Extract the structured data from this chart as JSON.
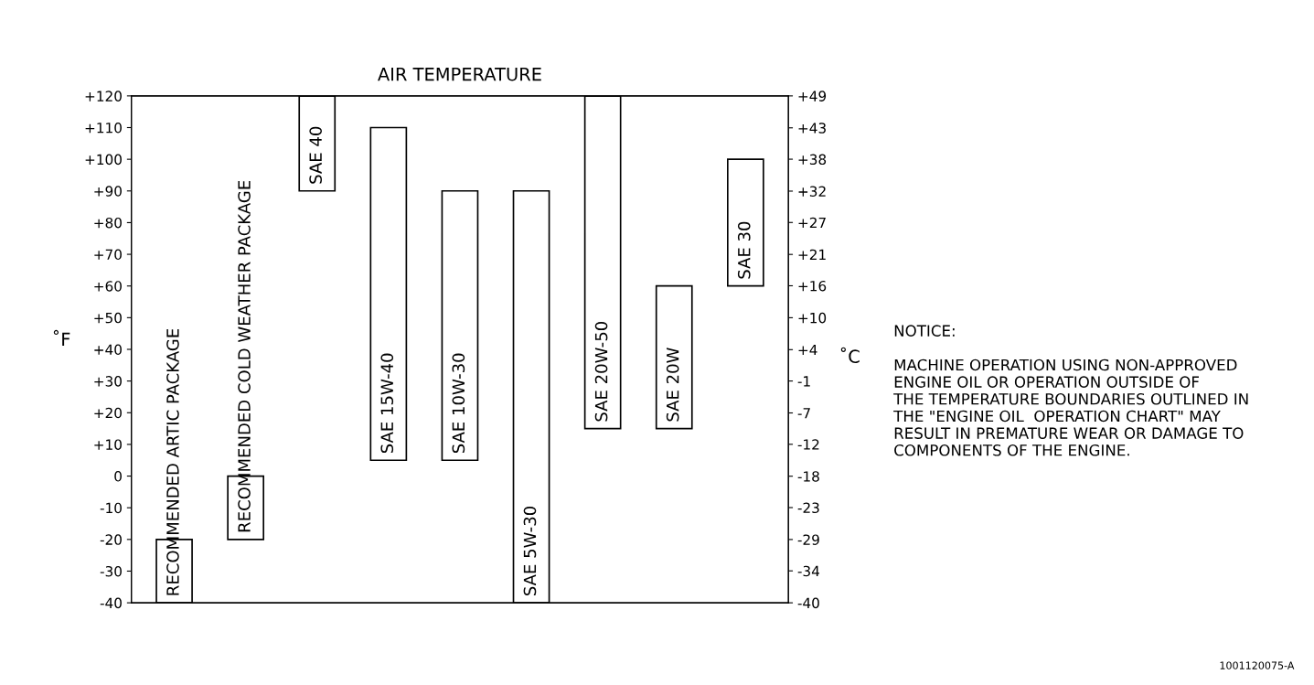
{
  "chart_data": {
    "type": "bar",
    "title": "AIR TEMPERATURE",
    "ylabel": "˚F",
    "y2label": "˚C",
    "categories": [
      "RECOMMENDED ARTIC PACKAGE",
      "RECOMMENDED COLD WEATHER PACKAGE",
      "SAE 40",
      "SAE 15W-40",
      "SAE 10W-30",
      "SAE 5W-30",
      "SAE 20W-50",
      "SAE 20W",
      "SAE 30"
    ],
    "base": [
      -40,
      -20,
      90,
      5,
      5,
      -40,
      15,
      15,
      60
    ],
    "values": [
      20,
      20,
      30,
      105,
      85,
      130,
      105,
      45,
      40
    ],
    "color": "#ffffff",
    "ylim": [
      -40,
      120
    ],
    "yticks": [
      {
        "value": 120,
        "label": "+120"
      },
      {
        "value": 110,
        "label": "+110"
      },
      {
        "value": 100,
        "label": "+100"
      },
      {
        "value": 90,
        "label": "+90"
      },
      {
        "value": 80,
        "label": "+80"
      },
      {
        "value": 70,
        "label": "+70"
      },
      {
        "value": 60,
        "label": "+60"
      },
      {
        "value": 50,
        "label": "+50"
      },
      {
        "value": 40,
        "label": "+40"
      },
      {
        "value": 30,
        "label": "+30"
      },
      {
        "value": 20,
        "label": "+20"
      },
      {
        "value": 10,
        "label": "+10"
      },
      0,
      -10,
      -20,
      -30,
      -40
    ],
    "y2lim": [
      -40,
      48.9
    ],
    "y2ticks": [
      {
        "value": 48.9,
        "label": "+49"
      },
      {
        "value": 43.3,
        "label": "+43"
      },
      {
        "value": 37.8,
        "label": "+38"
      },
      {
        "value": 32.2,
        "label": "+32"
      },
      {
        "value": 26.7,
        "label": "+27"
      },
      {
        "value": 21.1,
        "label": "+21"
      },
      {
        "value": 15.6,
        "label": "+16"
      },
      {
        "value": 10,
        "label": "+10"
      },
      {
        "value": 4.4,
        "label": "+4"
      },
      {
        "value": -1.1,
        "label": "-1"
      },
      {
        "value": -6.7,
        "label": "-7"
      },
      {
        "value": -12.2,
        "label": "-12"
      },
      {
        "value": -17.8,
        "label": "-18"
      },
      {
        "value": -23.3,
        "label": "-23"
      },
      {
        "value": -28.9,
        "label": "-29"
      },
      {
        "value": -34.4,
        "label": "-34"
      },
      {
        "value": -40,
        "label": "-40"
      }
    ],
    "grid": false,
    "annotations": [
      "NOTICE:\n\nMACHINE OPERATION USING NON-APPROVED\nENGINE OIL OR OPERATION OUTSIDE OF\nTHE TEMPERATURE BOUNDARIES OUTLINED IN\nTHE \"ENGINE OIL  OPERATION CHART\" MAY\nRESULT IN PREMATURE WEAR OR DAMAGE TO\nCOMPONENTS OF THE ENGINE.",
      "1001120075-A"
    ]
  }
}
